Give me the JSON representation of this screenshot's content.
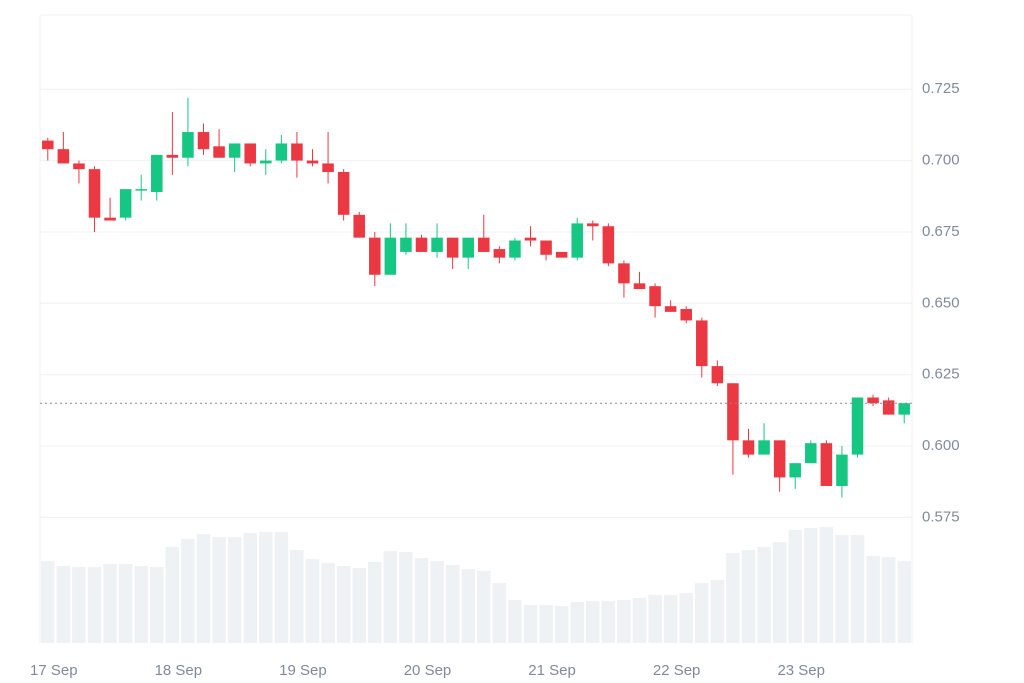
{
  "chart_data": {
    "type": "candlestick",
    "categories": [
      "17 Sep",
      null,
      null,
      null,
      null,
      null,
      null,
      null,
      "18 Sep",
      null,
      null,
      null,
      null,
      null,
      null,
      null,
      "19 Sep",
      null,
      null,
      null,
      null,
      null,
      null,
      null,
      "20 Sep",
      null,
      null,
      null,
      null,
      null,
      null,
      null,
      "21 Sep",
      null,
      null,
      null,
      null,
      null,
      null,
      null,
      "22 Sep",
      null,
      null,
      null,
      null,
      null,
      null,
      null,
      "23 Sep",
      null,
      null,
      null,
      null,
      null,
      null,
      null
    ],
    "open": [
      0.707,
      0.704,
      0.699,
      0.697,
      0.68,
      0.68,
      0.69,
      0.689,
      0.702,
      0.701,
      0.71,
      0.705,
      0.701,
      0.706,
      0.699,
      0.7,
      0.706,
      0.7,
      0.699,
      0.696,
      0.681,
      0.673,
      0.66,
      0.668,
      0.673,
      0.668,
      0.673,
      0.666,
      0.673,
      0.669,
      0.666,
      0.673,
      0.672,
      0.668,
      0.666,
      0.678,
      0.677,
      0.664,
      0.657,
      0.656,
      0.649,
      0.648,
      0.644,
      0.628,
      0.622,
      0.602,
      0.597,
      0.602,
      0.589,
      0.594,
      0.601,
      0.586,
      0.597,
      0.617,
      0.616,
      0.611
    ],
    "high": [
      0.708,
      0.71,
      0.7,
      0.698,
      0.687,
      0.69,
      0.695,
      0.702,
      0.717,
      0.722,
      0.713,
      0.711,
      0.706,
      0.706,
      0.704,
      0.709,
      0.71,
      0.704,
      0.71,
      0.697,
      0.682,
      0.675,
      0.678,
      0.678,
      0.674,
      0.678,
      0.673,
      0.673,
      0.681,
      0.67,
      0.673,
      0.677,
      0.672,
      0.668,
      0.68,
      0.679,
      0.678,
      0.665,
      0.661,
      0.657,
      0.651,
      0.649,
      0.645,
      0.63,
      0.622,
      0.606,
      0.608,
      0.602,
      0.594,
      0.602,
      0.602,
      0.6,
      0.617,
      0.618,
      0.617,
      0.615
    ],
    "low": [
      0.7,
      0.699,
      0.692,
      0.675,
      0.679,
      0.679,
      0.686,
      0.686,
      0.695,
      0.698,
      0.702,
      0.701,
      0.696,
      0.698,
      0.695,
      0.699,
      0.694,
      0.698,
      0.692,
      0.679,
      0.673,
      0.656,
      0.66,
      0.667,
      0.668,
      0.666,
      0.662,
      0.662,
      0.668,
      0.664,
      0.665,
      0.67,
      0.665,
      0.666,
      0.665,
      0.672,
      0.663,
      0.652,
      0.655,
      0.645,
      0.647,
      0.643,
      0.624,
      0.621,
      0.59,
      0.596,
      0.597,
      0.584,
      0.585,
      0.594,
      0.586,
      0.582,
      0.596,
      0.614,
      0.611,
      0.608
    ],
    "close": [
      0.704,
      0.699,
      0.697,
      0.68,
      0.679,
      0.69,
      0.69,
      0.702,
      0.701,
      0.71,
      0.704,
      0.701,
      0.706,
      0.699,
      0.7,
      0.706,
      0.7,
      0.699,
      0.696,
      0.681,
      0.673,
      0.66,
      0.673,
      0.673,
      0.668,
      0.673,
      0.666,
      0.673,
      0.668,
      0.666,
      0.672,
      0.672,
      0.667,
      0.666,
      0.678,
      0.677,
      0.664,
      0.657,
      0.655,
      0.649,
      0.647,
      0.644,
      0.628,
      0.622,
      0.602,
      0.597,
      0.602,
      0.589,
      0.594,
      0.601,
      0.586,
      0.597,
      0.617,
      0.615,
      0.611,
      0.615
    ],
    "volume": [
      82,
      77,
      76,
      76,
      79,
      79,
      77,
      76,
      96,
      104,
      109,
      106,
      106,
      110,
      111,
      111,
      93,
      84,
      80,
      77,
      75,
      81,
      92,
      91,
      85,
      82,
      78,
      74,
      72,
      60,
      43,
      38,
      38,
      37,
      41,
      42,
      42,
      43,
      45,
      48,
      48,
      50,
      60,
      63,
      90,
      93,
      96,
      101,
      113,
      115,
      116,
      108,
      108,
      87,
      86,
      82
    ],
    "volume_lim": [
      0,
      120
    ],
    "up_color": "#16c784",
    "down_color": "#ea3943",
    "volume_color": "#eff2f5",
    "last_price": 0.615,
    "ylim": [
      0.531,
      0.751
    ],
    "yticks": [
      0.575,
      {
        "value": 0.6,
        "label": "0.600"
      },
      0.625,
      {
        "value": 0.65,
        "label": "0.650"
      },
      0.675,
      {
        "value": 0.7,
        "label": "0.700"
      },
      0.725
    ],
    "grid": true
  }
}
